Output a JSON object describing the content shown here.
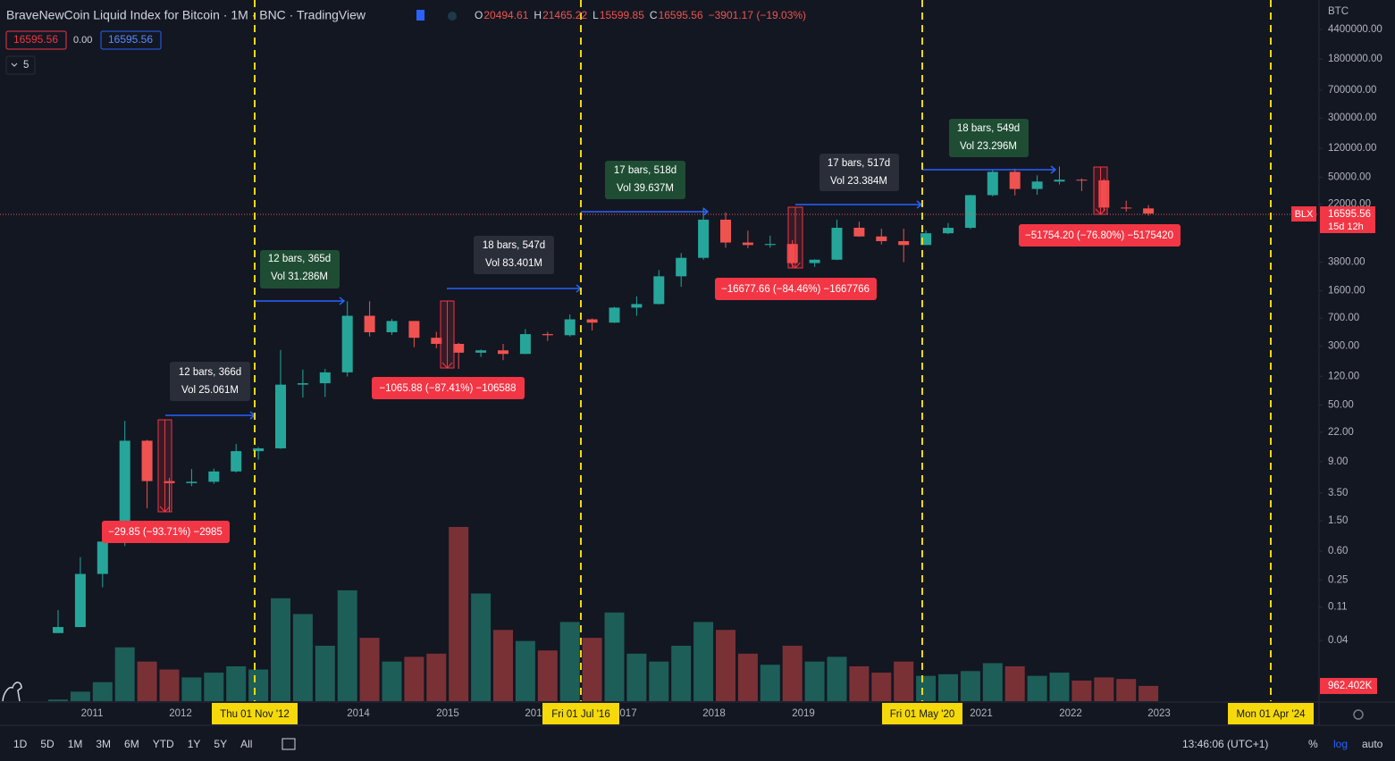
{
  "header": {
    "title": "BraveNewCoin Liquid Index for Bitcoin · 1M · BNC · TradingView",
    "o_key": "O",
    "o": "20494.61",
    "h_key": "H",
    "h": "21465.22",
    "l_key": "L",
    "l": "15599.85",
    "c_key": "C",
    "c": "16595.56",
    "change": "−3901.17 (−19.03%)",
    "bid": "16595.56",
    "spread": "0.00",
    "ask": "16595.56",
    "indicators": "5"
  },
  "chart_data": {
    "type": "candlestick",
    "log_scale": true,
    "up_color": "#26a69a",
    "down_color": "#ef5350",
    "volume_up_color": "#1d5e58",
    "volume_down_color": "#7a3136",
    "ylim": [
      0.00635,
      10740000
    ],
    "yticks": [
      {
        "value": 4400000,
        "label": "4400000.00"
      },
      {
        "value": 1800000,
        "label": "1800000.00"
      },
      {
        "value": 700000,
        "label": "700000.00"
      },
      {
        "value": 300000,
        "label": "300000.00"
      },
      {
        "value": 120000,
        "label": "120000.00"
      },
      {
        "value": 50000,
        "label": "50000.00"
      },
      {
        "value": 22000,
        "label": "22000.00"
      },
      {
        "value": 3800,
        "label": "3800.00"
      },
      {
        "value": 1600,
        "label": "1600.00"
      },
      {
        "value": 700,
        "label": "700.00"
      },
      {
        "value": 300,
        "label": "300.00"
      },
      {
        "value": 120,
        "label": "120.00"
      },
      {
        "value": 50,
        "label": "50.00"
      },
      {
        "value": 22,
        "label": "22.00"
      },
      {
        "value": 9,
        "label": "9.00"
      },
      {
        "value": 3.5,
        "label": "3.50"
      },
      {
        "value": 1.5,
        "label": "1.50"
      },
      {
        "value": 0.6,
        "label": "0.60"
      },
      {
        "value": 0.25,
        "label": "0.25"
      },
      {
        "value": 0.11,
        "label": "0.11"
      },
      {
        "value": 0.04,
        "label": "0.04"
      }
    ],
    "candles": [
      [
        0.05,
        0.1,
        0.05,
        0.06
      ],
      [
        0.06,
        0.5,
        0.06,
        0.3
      ],
      [
        0.3,
        1.1,
        0.2,
        0.8
      ],
      [
        0.8,
        31,
        0.7,
        17
      ],
      [
        17,
        17.5,
        2.2,
        5
      ],
      [
        5,
        5.5,
        2,
        4.7
      ],
      [
        4.7,
        7.2,
        4.3,
        4.9
      ],
      [
        4.9,
        7.3,
        4.6,
        6.7
      ],
      [
        6.7,
        15.4,
        6.5,
        12.4
      ],
      [
        12.4,
        14,
        9.6,
        13.5
      ],
      [
        13.5,
        266,
        13.3,
        93
      ],
      [
        93,
        147,
        63,
        97
      ],
      [
        97,
        150,
        64,
        135
      ],
      [
        135,
        1163,
        119,
        750
      ],
      [
        750,
        1165,
        400,
        455
      ],
      [
        455,
        680,
        420,
        640
      ],
      [
        640,
        640,
        290,
        385
      ],
      [
        385,
        460,
        280,
        320
      ],
      [
        320,
        330,
        150,
        245
      ],
      [
        245,
        270,
        215,
        263
      ],
      [
        263,
        320,
        195,
        236
      ],
      [
        236,
        500,
        234,
        430
      ],
      [
        430,
        460,
        350,
        416
      ],
      [
        416,
        780,
        400,
        673
      ],
      [
        673,
        690,
        480,
        609
      ],
      [
        609,
        980,
        600,
        960
      ],
      [
        960,
        1350,
        750,
        1070
      ],
      [
        1070,
        3000,
        1060,
        2480
      ],
      [
        2480,
        5000,
        1800,
        4340
      ],
      [
        4340,
        19800,
        4100,
        13800
      ],
      [
        13800,
        17200,
        5900,
        6900
      ],
      [
        6900,
        9900,
        5800,
        6400
      ],
      [
        6400,
        8500,
        5900,
        6600
      ],
      [
        6600,
        7400,
        3200,
        3700
      ],
      [
        3700,
        4150,
        3300,
        4100
      ],
      [
        4100,
        13800,
        4050,
        10800
      ],
      [
        10800,
        13000,
        8200,
        8300
      ],
      [
        8300,
        10500,
        6500,
        7200
      ],
      [
        7200,
        10500,
        3800,
        6400
      ],
      [
        6400,
        10000,
        6400,
        9140
      ],
      [
        9140,
        12500,
        8900,
        10780
      ],
      [
        10780,
        29300,
        10400,
        29000
      ],
      [
        29000,
        61800,
        28000,
        58800
      ],
      [
        58800,
        64800,
        28800,
        35000
      ],
      [
        35000,
        52900,
        29300,
        43800
      ],
      [
        43800,
        69000,
        40000,
        46300
      ],
      [
        46300,
        48200,
        32900,
        45500
      ],
      [
        45500,
        47400,
        17600,
        19900
      ],
      [
        19900,
        24500,
        17600,
        19400
      ],
      [
        19400,
        21465.22,
        15599.85,
        16595.56
      ]
    ],
    "volumes": [
      100000,
      600000,
      1200000,
      3400000,
      2500000,
      2000000,
      1500000,
      1800000,
      2200000,
      2000000,
      6500000,
      5500000,
      3500000,
      7000000,
      4000000,
      2500000,
      2800000,
      3000000,
      11000000,
      6800000,
      4500000,
      3800000,
      3200000,
      5000000,
      4000000,
      5600000,
      3000000,
      2500000,
      3500000,
      5000000,
      4500000,
      3000000,
      2300000,
      3500000,
      2500000,
      2800000,
      2200000,
      1800000,
      2500000,
      1600000,
      1700000,
      1900000,
      2400000,
      2200000,
      1600000,
      1800000,
      1300000,
      1500000,
      1400000,
      962402
    ],
    "volume_lim": [
      0,
      11000000
    ],
    "last_volume_label": "962.402K",
    "currency": "BTC",
    "price_tag": {
      "symbol": "BLX",
      "price": "16595.56",
      "countdown": "15d 12h"
    }
  },
  "x_axis": {
    "years": [
      "2011",
      "2012",
      "2014",
      "2015",
      "201",
      "017",
      "2018",
      "2019",
      "2021",
      "2022",
      "2023"
    ],
    "markers": [
      "Thu 01 Nov '12",
      "Fri 01 Jul '16",
      "Fri 01 May '20",
      "Mon 01 Apr '24"
    ]
  },
  "annotations": {
    "ranges": [
      [
        "12 bars, 366d",
        "Vol 25.061M"
      ],
      [
        "12 bars, 365d",
        "Vol 31.286M"
      ],
      [
        "18 bars, 547d",
        "Vol 83.401M"
      ],
      [
        "17 bars, 518d",
        "Vol 39.637M"
      ],
      [
        "17 bars, 517d",
        "Vol 23.384M"
      ],
      [
        "18 bars, 549d",
        "Vol 23.296M"
      ]
    ],
    "drops": [
      "−29.85 (−93.71%) −2985",
      "−1065.88 (−87.41%) −106588",
      "−16677.66 (−84.46%) −1667766",
      "−51754.20 (−76.80%) −5175420"
    ]
  },
  "toolbar": {
    "ranges": [
      "1D",
      "5D",
      "1M",
      "3M",
      "6M",
      "YTD",
      "1Y",
      "5Y",
      "All"
    ],
    "clock": "13:46:06 (UTC+1)",
    "percent": "%",
    "log": "log",
    "auto": "auto"
  }
}
